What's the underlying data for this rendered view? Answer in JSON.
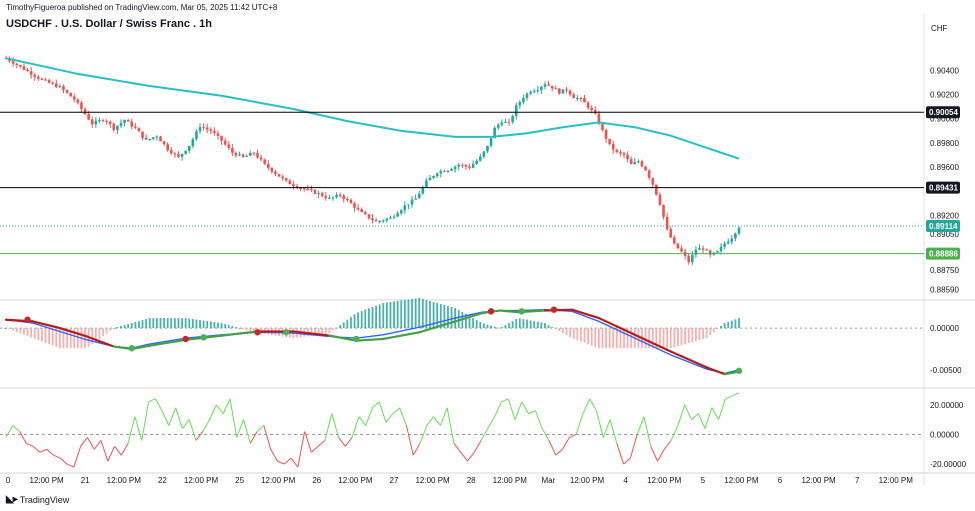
{
  "header": {
    "publisher": "TimothyFigueroa published on TradingView.com, Mar 05, 2025 11:42 UTC+8",
    "title": "USDCHF . U.S. Dollar / Swiss Franc . 1h",
    "currency": "CHF"
  },
  "footer": {
    "brand": "TradingView",
    "brand_icon": "tradingview-logo-icon"
  },
  "colors": {
    "up": "#26a69a",
    "down": "#ef5350",
    "ma": "#26bfc6",
    "hline": "#000000",
    "current": "#26a69a",
    "support": "#4caf50",
    "macd_signal": "#b71c1c",
    "macd_line": "#2962ff",
    "macd_green": "#43a047",
    "osc_up": "#66dd55",
    "osc_down": "#ef5350"
  },
  "chart_data": [
    {
      "type": "candlestick",
      "title": "USDCHF . U.S. Dollar / Swiss Franc . 1h",
      "x_ticks": [
        "0",
        "12:00 PM",
        "21",
        "12:00 PM",
        "22",
        "12:00 PM",
        "25",
        "12:00 PM",
        "26",
        "12:00 PM",
        "27",
        "12:00 PM",
        "28",
        "12:00 PM",
        "Mar",
        "12:00 PM",
        "4",
        "12:00 PM",
        "5",
        "12:00 PM",
        "6",
        "12:00 PM",
        "7",
        "12:00 PM"
      ],
      "y_ticks": [
        "0.90400",
        "0.90200",
        "0.90000",
        "0.89800",
        "0.89600",
        "0.89200",
        "0.89050",
        "0.88750",
        "0.88590"
      ],
      "ylim": [
        0.8852,
        0.9065
      ],
      "close_path": [
        [
          0,
          0.905
        ],
        [
          10,
          0.9041
        ],
        [
          20,
          0.9032
        ],
        [
          30,
          0.9026
        ],
        [
          38,
          0.9016
        ],
        [
          42,
          0.9008
        ],
        [
          48,
          0.8996
        ],
        [
          55,
          0.9
        ],
        [
          60,
          0.8992
        ],
        [
          66,
          0.8999
        ],
        [
          72,
          0.8992
        ],
        [
          78,
          0.8982
        ],
        [
          84,
          0.8986
        ],
        [
          90,
          0.8975
        ],
        [
          96,
          0.8968
        ],
        [
          102,
          0.8978
        ],
        [
          108,
          0.8994
        ],
        [
          114,
          0.899
        ],
        [
          120,
          0.8982
        ],
        [
          126,
          0.8972
        ],
        [
          132,
          0.8968
        ],
        [
          138,
          0.8972
        ],
        [
          144,
          0.8962
        ],
        [
          150,
          0.8955
        ],
        [
          156,
          0.8948
        ],
        [
          162,
          0.8944
        ],
        [
          168,
          0.8941
        ],
        [
          174,
          0.8938
        ],
        [
          180,
          0.8934
        ],
        [
          186,
          0.8937
        ],
        [
          192,
          0.893
        ],
        [
          198,
          0.8922
        ],
        [
          206,
          0.8915
        ],
        [
          214,
          0.8918
        ],
        [
          222,
          0.8928
        ],
        [
          228,
          0.8934
        ],
        [
          234,
          0.8948
        ],
        [
          240,
          0.8956
        ],
        [
          246,
          0.8958
        ],
        [
          252,
          0.8962
        ],
        [
          258,
          0.896
        ],
        [
          264,
          0.8968
        ],
        [
          268,
          0.8977
        ],
        [
          272,
          0.8992
        ],
        [
          276,
          0.8998
        ],
        [
          280,
          0.8996
        ],
        [
          284,
          0.901
        ],
        [
          288,
          0.9018
        ],
        [
          292,
          0.9023
        ],
        [
          296,
          0.9025
        ],
        [
          300,
          0.9029
        ],
        [
          304,
          0.9026
        ],
        [
          308,
          0.9022
        ],
        [
          312,
          0.9024
        ],
        [
          316,
          0.9018
        ],
        [
          320,
          0.9016
        ],
        [
          324,
          0.901
        ],
        [
          328,
          0.9003
        ],
        [
          332,
          0.899
        ],
        [
          336,
          0.8978
        ],
        [
          340,
          0.8972
        ],
        [
          344,
          0.897
        ],
        [
          348,
          0.8962
        ],
        [
          352,
          0.8965
        ],
        [
          356,
          0.8958
        ],
        [
          360,
          0.8946
        ],
        [
          364,
          0.893
        ],
        [
          368,
          0.8908
        ],
        [
          372,
          0.8896
        ],
        [
          376,
          0.889
        ],
        [
          380,
          0.8882
        ],
        [
          384,
          0.8892
        ],
        [
          388,
          0.8893
        ],
        [
          392,
          0.8887
        ],
        [
          396,
          0.889
        ],
        [
          400,
          0.8897
        ],
        [
          404,
          0.8902
        ],
        [
          408,
          0.8911
        ]
      ],
      "series": [
        {
          "name": "",
          "line_path": [
            [
              0,
              0.905
            ],
            [
              40,
              0.9037
            ],
            [
              80,
              0.9027
            ],
            [
              120,
              0.9019
            ],
            [
              160,
              0.9008
            ],
            [
              190,
              0.8998
            ],
            [
              220,
              0.899
            ],
            [
              250,
              0.8985
            ],
            [
              270,
              0.8985
            ],
            [
              290,
              0.8988
            ],
            [
              310,
              0.8993
            ],
            [
              330,
              0.8997
            ],
            [
              350,
              0.8993
            ],
            [
              370,
              0.8986
            ],
            [
              390,
              0.8976
            ],
            [
              408,
              0.8967
            ]
          ]
        }
      ],
      "price_lines": [
        {
          "label": "0.90054",
          "value": 0.90054,
          "role": "hline"
        },
        {
          "label": "0.89431",
          "value": 0.89431,
          "role": "hline"
        },
        {
          "label": "0.89114",
          "value": 0.89114,
          "role": "current"
        },
        {
          "label": "0.88886",
          "value": 0.88886,
          "role": "support"
        }
      ]
    },
    {
      "type": "macd",
      "y_ticks": [
        "0.00000",
        "-0.00500"
      ],
      "ylim": [
        -0.0068,
        0.003
      ],
      "signal_path": [
        [
          0,
          0.001
        ],
        [
          15,
          0.0008
        ],
        [
          30,
          0.0
        ],
        [
          45,
          -0.001
        ],
        [
          60,
          -0.0022
        ],
        [
          70,
          -0.0025
        ],
        [
          80,
          -0.0021
        ],
        [
          100,
          -0.0014
        ],
        [
          120,
          -0.0009
        ],
        [
          140,
          -0.0004
        ],
        [
          160,
          -0.0004
        ],
        [
          180,
          -0.0009
        ],
        [
          195,
          -0.0015
        ],
        [
          210,
          -0.0013
        ],
        [
          230,
          -0.0005
        ],
        [
          250,
          0.0008
        ],
        [
          265,
          0.0018
        ],
        [
          275,
          0.0021
        ],
        [
          285,
          0.0019
        ],
        [
          300,
          0.0021
        ],
        [
          315,
          0.0022
        ],
        [
          330,
          0.0012
        ],
        [
          350,
          -0.0008
        ],
        [
          370,
          -0.0028
        ],
        [
          390,
          -0.0047
        ],
        [
          400,
          -0.0055
        ],
        [
          408,
          -0.0052
        ]
      ],
      "macd_path": [
        [
          0,
          0.001
        ],
        [
          15,
          0.0006
        ],
        [
          30,
          -0.0004
        ],
        [
          45,
          -0.0014
        ],
        [
          60,
          -0.0022
        ],
        [
          70,
          -0.0024
        ],
        [
          80,
          -0.0019
        ],
        [
          100,
          -0.0012
        ],
        [
          120,
          -0.0008
        ],
        [
          140,
          -0.0005
        ],
        [
          160,
          -0.0006
        ],
        [
          180,
          -0.001
        ],
        [
          195,
          -0.0012
        ],
        [
          210,
          -0.0008
        ],
        [
          230,
          0.0001
        ],
        [
          250,
          0.0012
        ],
        [
          265,
          0.0019
        ],
        [
          275,
          0.0021
        ],
        [
          285,
          0.0021
        ],
        [
          300,
          0.0022
        ],
        [
          315,
          0.002
        ],
        [
          330,
          0.0008
        ],
        [
          350,
          -0.0012
        ],
        [
          370,
          -0.0032
        ],
        [
          390,
          -0.0049
        ],
        [
          400,
          -0.0054
        ],
        [
          408,
          -0.005
        ]
      ],
      "cross_markers": [
        {
          "x": 12,
          "value": 0.001,
          "kind": "red"
        },
        {
          "x": 70,
          "value": -0.0024,
          "kind": "green"
        },
        {
          "x": 100,
          "value": -0.0013,
          "kind": "red"
        },
        {
          "x": 110,
          "value": -0.0011,
          "kind": "green"
        },
        {
          "x": 140,
          "value": -0.0005,
          "kind": "red"
        },
        {
          "x": 156,
          "value": -0.0005,
          "kind": "green"
        },
        {
          "x": 195,
          "value": -0.0013,
          "kind": "green"
        },
        {
          "x": 270,
          "value": 0.002,
          "kind": "red"
        },
        {
          "x": 287,
          "value": 0.002,
          "kind": "green"
        },
        {
          "x": 305,
          "value": 0.0022,
          "kind": "red"
        },
        {
          "x": 408,
          "value": -0.0051,
          "kind": "green"
        }
      ]
    },
    {
      "type": "line",
      "y_ticks": [
        "20.00000",
        "0.00000",
        "-20.00000"
      ],
      "ylim": [
        -24,
        30
      ],
      "series": [
        {
          "name": "",
          "values": [
            -2,
            6,
            2,
            -6,
            -8,
            -12,
            -10,
            -14,
            -16,
            -20,
            -22,
            -8,
            -2,
            -10,
            -4,
            -18,
            -8,
            -14,
            -6,
            12,
            -4,
            22,
            24,
            16,
            6,
            18,
            4,
            10,
            -4,
            2,
            10,
            20,
            14,
            24,
            -2,
            10,
            -6,
            2,
            6,
            -10,
            -18,
            -20,
            -16,
            -22,
            2,
            -12,
            -8,
            -4,
            14,
            -2,
            -8,
            -2,
            12,
            6,
            18,
            22,
            8,
            14,
            18,
            6,
            -14,
            -6,
            6,
            12,
            6,
            18,
            -6,
            -12,
            -18,
            -12,
            -4,
            4,
            12,
            22,
            24,
            10,
            22,
            14,
            16,
            4,
            -4,
            -14,
            -10,
            -2,
            0,
            14,
            24,
            16,
            -2,
            10,
            -6,
            -20,
            -16,
            0,
            12,
            -8,
            -18,
            -10,
            -4,
            6,
            20,
            10,
            14,
            4,
            18,
            10,
            24,
            26,
            28
          ]
        }
      ]
    }
  ]
}
